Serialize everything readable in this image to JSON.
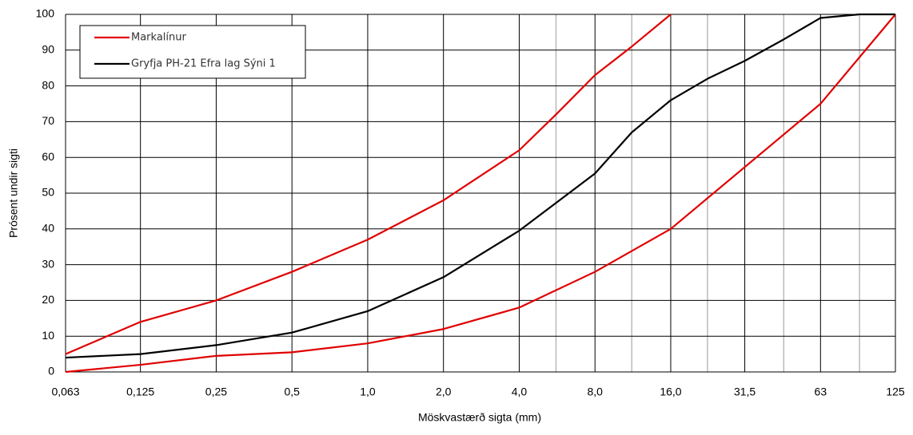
{
  "chart_data": {
    "type": "line",
    "x_label": "Möskvastærð sigta (mm)",
    "y_label": "Prósent undir sigti",
    "xscale": "log",
    "xlim": [
      0.063,
      125
    ],
    "ylim": [
      0,
      100
    ],
    "xticks": [
      {
        "value": 0.063,
        "label": "0,063"
      },
      {
        "value": 0.125,
        "label": "0,125"
      },
      {
        "value": 0.25,
        "label": "0,25"
      },
      {
        "value": 0.5,
        "label": "0,5"
      },
      {
        "value": 1,
        "label": "1,0"
      },
      {
        "value": 2,
        "label": "2,0"
      },
      {
        "value": 4,
        "label": "4,0"
      },
      {
        "value": 8,
        "label": "8,0"
      },
      {
        "value": 16,
        "label": "16,0"
      },
      {
        "value": 31.5,
        "label": "31,5"
      },
      63,
      125
    ],
    "xminor": [
      5.6,
      11.2,
      22.4,
      45,
      90
    ],
    "yticks": [
      0,
      10,
      20,
      30,
      40,
      50,
      60,
      70,
      80,
      90,
      100
    ],
    "grid": true,
    "legend": "top-left",
    "series": [
      {
        "name": "Markalínur",
        "color": "#e00000",
        "x": [
          0.063,
          0.125,
          0.25,
          0.5,
          1,
          2,
          4,
          5.6,
          8,
          11.2,
          16,
          null,
          0.063,
          0.125,
          0.25,
          0.5,
          1,
          2,
          4,
          8,
          16,
          63,
          125
        ],
        "values": [
          5,
          14,
          20,
          28,
          37,
          48,
          62,
          72,
          83,
          91,
          100,
          null,
          0,
          2,
          4.5,
          5.5,
          8,
          12,
          18,
          28,
          40,
          75,
          100
        ]
      },
      {
        "name": "Gryfja PH-21 Efra lag Sýni 1",
        "color": "#000000",
        "x": [
          0.063,
          0.125,
          0.25,
          0.5,
          1,
          2,
          4,
          8,
          11.2,
          16,
          22.4,
          31.5,
          45,
          63,
          90,
          125
        ],
        "values": [
          4,
          5,
          7.5,
          11,
          17,
          26.5,
          39.5,
          55.5,
          67,
          76,
          82,
          87,
          93,
          99,
          100,
          100
        ]
      }
    ]
  }
}
